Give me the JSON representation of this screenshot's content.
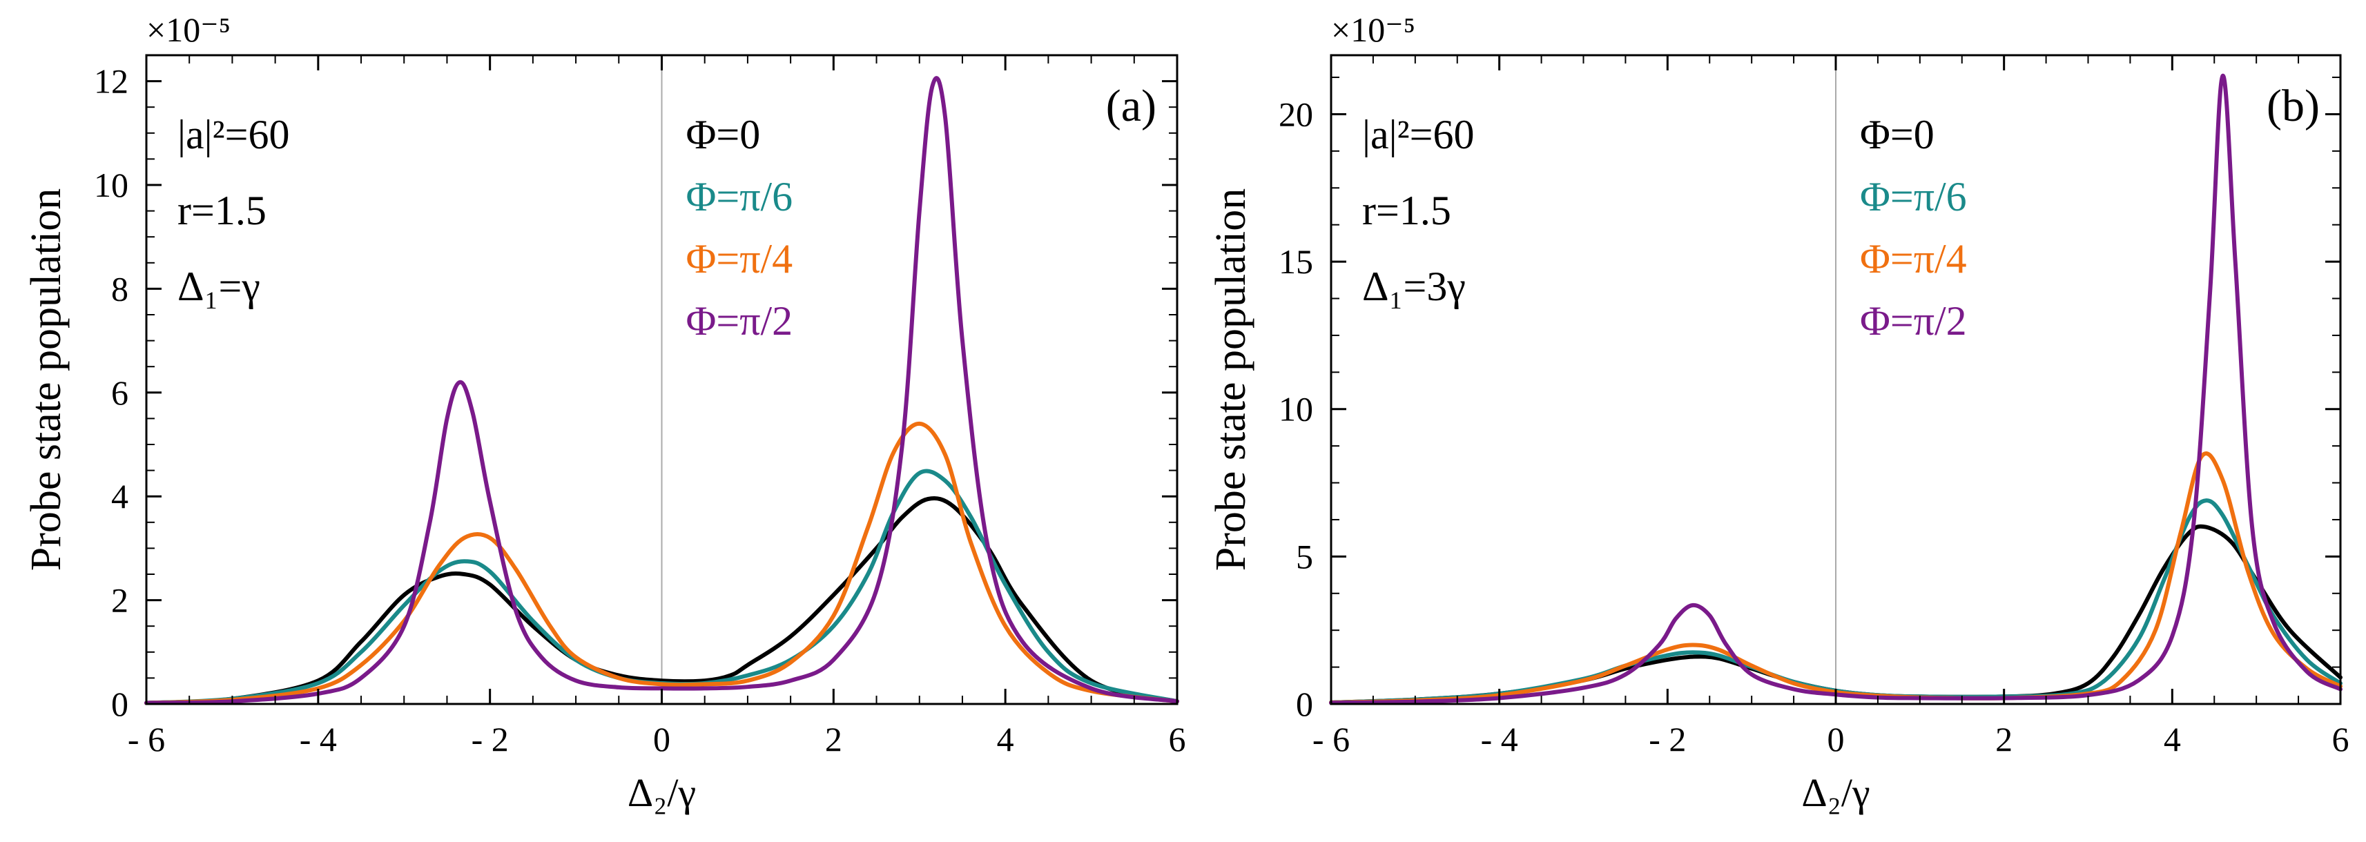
{
  "chart_data": [
    {
      "id": "a",
      "type": "line",
      "panel_label": "(a)",
      "xlabel": "Δ₂/γ",
      "ylabel": "Probe state population",
      "multiplier": "×10⁻⁵",
      "xlim": [
        -6,
        6
      ],
      "ylim": [
        0,
        12.5
      ],
      "xticks": [
        -6,
        -4,
        -2,
        0,
        2,
        4,
        6
      ],
      "yticks": [
        0,
        2,
        4,
        6,
        8,
        10,
        12
      ],
      "params": [
        "|a|²=60",
        "r=1.5",
        "Δ₁=γ"
      ],
      "series": [
        {
          "name": "Φ=0",
          "color": "#000000",
          "x": [
            -6,
            -5,
            -4,
            -3.5,
            -3,
            -2.6,
            -2.3,
            -2.0,
            -1.5,
            -1.0,
            -0.5,
            0,
            0.5,
            0.8,
            1.0,
            1.5,
            2.0,
            2.5,
            2.8,
            3.1,
            3.4,
            3.8,
            4.2,
            5.0,
            6.0
          ],
          "y": [
            0.02,
            0.1,
            0.45,
            1.2,
            2.1,
            2.45,
            2.5,
            2.3,
            1.5,
            0.85,
            0.55,
            0.45,
            0.45,
            0.55,
            0.75,
            1.3,
            2.1,
            3.0,
            3.6,
            3.95,
            3.8,
            3.0,
            1.9,
            0.45,
            0.05
          ]
        },
        {
          "name": "Φ=π/6",
          "color": "#1a8a8a",
          "x": [
            -6,
            -5,
            -4,
            -3.5,
            -3,
            -2.6,
            -2.3,
            -2.0,
            -1.5,
            -1.0,
            -0.5,
            0,
            0.5,
            1.0,
            1.5,
            2.0,
            2.4,
            2.7,
            3.0,
            3.3,
            3.6,
            4.0,
            4.5,
            5.0,
            6.0
          ],
          "y": [
            0.02,
            0.1,
            0.4,
            1.0,
            1.9,
            2.55,
            2.75,
            2.55,
            1.6,
            0.85,
            0.5,
            0.4,
            0.4,
            0.55,
            0.85,
            1.5,
            2.5,
            3.7,
            4.45,
            4.3,
            3.6,
            2.3,
            1.0,
            0.4,
            0.05
          ]
        },
        {
          "name": "Φ=π/4",
          "color": "#f07010",
          "x": [
            -6,
            -5,
            -4,
            -3.5,
            -3,
            -2.6,
            -2.3,
            -2.0,
            -1.7,
            -1.3,
            -1.0,
            -0.5,
            0,
            0.5,
            1.0,
            1.5,
            2.0,
            2.4,
            2.7,
            3.0,
            3.3,
            3.6,
            4.0,
            4.5,
            5.0,
            6.0
          ],
          "y": [
            0.02,
            0.08,
            0.3,
            0.75,
            1.6,
            2.65,
            3.2,
            3.2,
            2.6,
            1.5,
            0.9,
            0.5,
            0.38,
            0.38,
            0.45,
            0.8,
            1.7,
            3.4,
            4.85,
            5.4,
            4.8,
            3.1,
            1.5,
            0.6,
            0.25,
            0.05
          ]
        },
        {
          "name": "Φ=π/2",
          "color": "#7a1a8a",
          "x": [
            -6,
            -5,
            -4,
            -3.5,
            -3,
            -2.7,
            -2.5,
            -2.35,
            -2.2,
            -2.0,
            -1.7,
            -1.4,
            -1.0,
            -0.5,
            0,
            0.5,
            1.0,
            1.5,
            2.0,
            2.5,
            2.8,
            3.0,
            3.15,
            3.3,
            3.5,
            3.8,
            4.2,
            5.0,
            6.0
          ],
          "y": [
            0.02,
            0.05,
            0.2,
            0.5,
            1.5,
            3.5,
            5.5,
            6.2,
            5.6,
            3.9,
            1.8,
            0.9,
            0.45,
            0.32,
            0.3,
            0.3,
            0.33,
            0.45,
            0.85,
            2.2,
            5.0,
            9.5,
            11.9,
            11.3,
            7.0,
            3.0,
            1.2,
            0.3,
            0.05
          ]
        }
      ]
    },
    {
      "id": "b",
      "type": "line",
      "panel_label": "(b)",
      "xlabel": "Δ₂/γ",
      "ylabel": "Probe state population",
      "multiplier": "×10⁻⁵",
      "xlim": [
        -6,
        6
      ],
      "ylim": [
        0,
        22
      ],
      "xticks": [
        -6,
        -4,
        -2,
        0,
        2,
        4,
        6
      ],
      "yticks": [
        0,
        5,
        10,
        15,
        20
      ],
      "params": [
        "|a|²=60",
        "r=1.5",
        "Δ₁=3γ"
      ],
      "series": [
        {
          "name": "Φ=0",
          "color": "#000000",
          "x": [
            -6,
            -5,
            -4,
            -3,
            -2.5,
            -2.0,
            -1.7,
            -1.4,
            -1.0,
            -0.5,
            0,
            0.5,
            1.0,
            2.0,
            2.6,
            3.0,
            3.3,
            3.6,
            3.9,
            4.2,
            4.4,
            4.7,
            5.0,
            5.4,
            6.0
          ],
          "y": [
            0.05,
            0.15,
            0.35,
            0.8,
            1.2,
            1.5,
            1.6,
            1.55,
            1.2,
            0.75,
            0.45,
            0.3,
            0.25,
            0.25,
            0.35,
            0.7,
            1.6,
            3.0,
            4.6,
            5.8,
            6.0,
            5.5,
            4.2,
            2.5,
            0.9
          ]
        },
        {
          "name": "Φ=π/6",
          "color": "#1a8a8a",
          "x": [
            -6,
            -5,
            -4,
            -3,
            -2.5,
            -2.0,
            -1.7,
            -1.4,
            -1.0,
            -0.5,
            0,
            0.5,
            1.0,
            2.0,
            2.8,
            3.2,
            3.6,
            3.9,
            4.2,
            4.4,
            4.6,
            4.9,
            5.2,
            5.6,
            6.0
          ],
          "y": [
            0.05,
            0.15,
            0.35,
            0.85,
            1.3,
            1.65,
            1.75,
            1.65,
            1.25,
            0.75,
            0.45,
            0.3,
            0.25,
            0.25,
            0.35,
            0.8,
            2.2,
            4.2,
            6.3,
            6.9,
            6.4,
            4.7,
            3.0,
            1.5,
            0.7
          ]
        },
        {
          "name": "Φ=π/4",
          "color": "#f07010",
          "x": [
            -6,
            -5,
            -4,
            -3,
            -2.5,
            -2.0,
            -1.7,
            -1.4,
            -1.0,
            -0.5,
            0,
            0.5,
            1.0,
            2.0,
            3.0,
            3.4,
            3.8,
            4.1,
            4.35,
            4.6,
            4.9,
            5.2,
            5.6,
            6.0
          ],
          "y": [
            0.05,
            0.12,
            0.3,
            0.8,
            1.3,
            1.85,
            2.0,
            1.85,
            1.3,
            0.7,
            0.4,
            0.28,
            0.22,
            0.2,
            0.35,
            0.8,
            2.5,
            5.8,
            8.4,
            7.6,
            4.5,
            2.4,
            1.2,
            0.6
          ]
        },
        {
          "name": "Φ=π/2",
          "color": "#7a1a8a",
          "x": [
            -6,
            -5,
            -4,
            -3,
            -2.5,
            -2.1,
            -1.9,
            -1.7,
            -1.5,
            -1.3,
            -1.0,
            -0.5,
            0,
            0.5,
            1.0,
            2.0,
            3.0,
            3.6,
            4.0,
            4.25,
            4.45,
            4.6,
            4.75,
            4.95,
            5.2,
            5.6,
            6.0
          ],
          "y": [
            0.04,
            0.08,
            0.2,
            0.55,
            1.0,
            2.0,
            2.9,
            3.35,
            3.0,
            2.0,
            1.0,
            0.5,
            0.32,
            0.22,
            0.2,
            0.2,
            0.3,
            0.8,
            2.3,
            6.0,
            14.0,
            21.3,
            15.0,
            6.0,
            2.8,
            1.1,
            0.5
          ]
        }
      ]
    }
  ]
}
